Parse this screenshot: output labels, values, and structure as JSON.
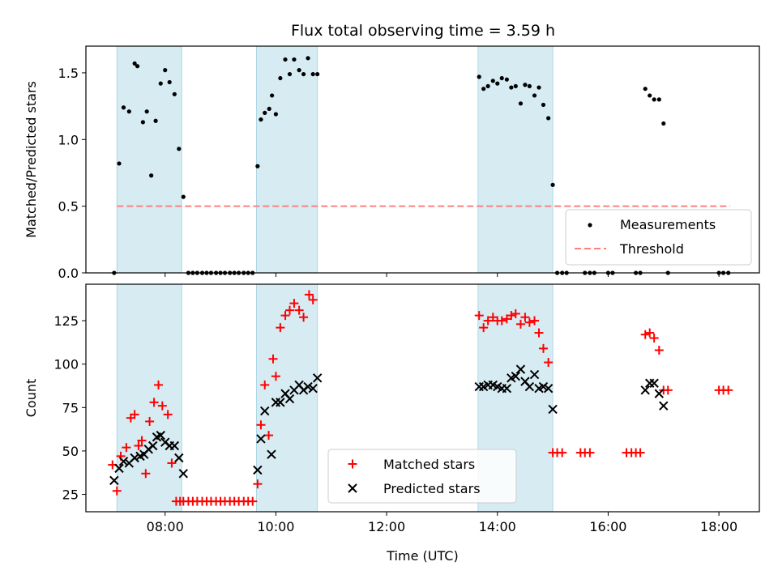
{
  "title": "Flux total observing time = 3.59 h",
  "colors": {
    "shade": "#add8e6",
    "measurement": "#000000",
    "threshold": "#ff7f7f",
    "matched": "#ff0000",
    "predicted": "#000000"
  },
  "chart_data": [
    {
      "type": "scatter",
      "panel": "top",
      "ylabel": "Matched/Predicted stars",
      "xlim": [
        6.57,
        18.73
      ],
      "ylim": [
        0,
        1.7
      ],
      "yticks": [
        0.0,
        0.5,
        1.0,
        1.5
      ],
      "ytick_labels": [
        "0.0",
        "0.5",
        "1.0",
        "1.5"
      ],
      "shaded_intervals": [
        [
          7.13,
          8.3
        ],
        [
          9.65,
          10.75
        ],
        [
          13.65,
          15.0
        ]
      ],
      "threshold": {
        "label": "Threshold",
        "value": 0.5,
        "x_range": [
          7.13,
          18.2
        ]
      },
      "legend": {
        "position": "lower right",
        "entries": [
          "Measurements",
          "Threshold"
        ]
      },
      "series": [
        {
          "name": "Measurements",
          "x": [
            7.08,
            7.17,
            7.25,
            7.35,
            7.45,
            7.5,
            7.6,
            7.67,
            7.75,
            7.83,
            7.92,
            8.0,
            8.08,
            8.17,
            8.25,
            8.33,
            8.42,
            8.5,
            8.58,
            8.67,
            8.75,
            8.83,
            8.92,
            9.0,
            9.08,
            9.17,
            9.25,
            9.33,
            9.42,
            9.5,
            9.58,
            9.67,
            9.73,
            9.8,
            9.88,
            9.93,
            10.0,
            10.08,
            10.17,
            10.25,
            10.33,
            10.42,
            10.5,
            10.58,
            10.67,
            10.75,
            13.67,
            13.75,
            13.83,
            13.92,
            14.0,
            14.08,
            14.17,
            14.25,
            14.33,
            14.42,
            14.5,
            14.58,
            14.67,
            14.75,
            14.83,
            14.92,
            15.0,
            15.08,
            15.17,
            15.25,
            15.58,
            15.67,
            15.75,
            16.0,
            16.08,
            16.5,
            16.58,
            16.67,
            16.75,
            16.83,
            16.92,
            17.0,
            17.08,
            18.0,
            18.08,
            18.17
          ],
          "y": [
            0.0,
            0.82,
            1.24,
            1.21,
            1.57,
            1.55,
            1.13,
            1.21,
            0.73,
            1.14,
            1.42,
            1.52,
            1.43,
            1.34,
            0.93,
            0.57,
            0.0,
            0.0,
            0.0,
            0.0,
            0.0,
            0.0,
            0.0,
            0.0,
            0.0,
            0.0,
            0.0,
            0.0,
            0.0,
            0.0,
            0.0,
            0.8,
            1.15,
            1.2,
            1.23,
            1.33,
            1.19,
            1.46,
            1.6,
            1.49,
            1.6,
            1.52,
            1.49,
            1.61,
            1.49,
            1.49,
            1.47,
            1.38,
            1.4,
            1.44,
            1.42,
            1.46,
            1.45,
            1.39,
            1.4,
            1.27,
            1.41,
            1.4,
            1.33,
            1.39,
            1.26,
            1.16,
            0.66,
            0.0,
            0.0,
            0.0,
            0.0,
            0.0,
            0.0,
            0.0,
            0.0,
            0.0,
            0.0,
            1.38,
            1.33,
            1.3,
            1.3,
            1.12,
            0.0,
            0.0,
            0.0,
            0.0
          ]
        }
      ]
    },
    {
      "type": "scatter",
      "panel": "bottom",
      "xlabel": "Time (UTC)",
      "ylabel": "Count",
      "xlim": [
        6.57,
        18.73
      ],
      "ylim": [
        15,
        146
      ],
      "xticks": [
        8,
        10,
        12,
        14,
        16,
        18
      ],
      "xtick_labels": [
        "08:00",
        "10:00",
        "12:00",
        "14:00",
        "16:00",
        "18:00"
      ],
      "yticks": [
        25,
        50,
        75,
        100,
        125
      ],
      "ytick_labels": [
        "25",
        "50",
        "75",
        "100",
        "125"
      ],
      "shaded_intervals": [
        [
          7.13,
          8.3
        ],
        [
          9.65,
          10.75
        ],
        [
          13.65,
          15.0
        ]
      ],
      "legend": {
        "position": "lower center",
        "entries": [
          "Matched stars",
          "Predicted stars"
        ]
      },
      "series": [
        {
          "name": "Matched stars",
          "marker": "+",
          "x": [
            7.05,
            7.13,
            7.2,
            7.3,
            7.38,
            7.45,
            7.52,
            7.58,
            7.65,
            7.72,
            7.8,
            7.88,
            7.95,
            8.05,
            8.12,
            8.2,
            8.27,
            8.33,
            8.42,
            8.5,
            8.58,
            8.67,
            8.75,
            8.83,
            8.92,
            9.0,
            9.08,
            9.17,
            9.25,
            9.33,
            9.42,
            9.5,
            9.58,
            9.67,
            9.73,
            9.8,
            9.87,
            9.95,
            10.0,
            10.08,
            10.17,
            10.25,
            10.33,
            10.42,
            10.5,
            10.6,
            10.67,
            13.67,
            13.75,
            13.83,
            13.92,
            14.0,
            14.08,
            14.17,
            14.25,
            14.33,
            14.42,
            14.5,
            14.58,
            14.67,
            14.75,
            14.83,
            14.92,
            15.0,
            15.08,
            15.17,
            15.5,
            15.58,
            15.67,
            16.33,
            16.42,
            16.5,
            16.58,
            16.67,
            16.75,
            16.83,
            16.92,
            17.0,
            17.08,
            18.0,
            18.08,
            18.17
          ],
          "y": [
            42,
            27,
            47,
            52,
            69,
            71,
            53,
            56,
            37,
            67,
            78,
            88,
            76,
            71,
            43,
            21,
            21,
            21,
            21,
            21,
            21,
            21,
            21,
            21,
            21,
            21,
            21,
            21,
            21,
            21,
            21,
            21,
            21,
            31,
            65,
            88,
            59,
            103,
            93,
            121,
            128,
            131,
            135,
            131,
            127,
            140,
            137,
            128,
            121,
            125,
            127,
            125,
            125,
            126,
            128,
            129,
            123,
            127,
            124,
            125,
            118,
            109,
            101,
            49,
            49,
            49,
            49,
            49,
            49,
            49,
            49,
            49,
            49,
            117,
            118,
            115,
            108,
            85,
            85,
            85,
            85,
            85
          ]
        },
        {
          "name": "Predicted stars",
          "marker": "x",
          "x": [
            7.08,
            7.17,
            7.25,
            7.35,
            7.45,
            7.55,
            7.62,
            7.7,
            7.78,
            7.85,
            7.92,
            8.0,
            8.08,
            8.17,
            8.25,
            8.33,
            9.67,
            9.73,
            9.8,
            9.92,
            10.0,
            10.08,
            10.17,
            10.25,
            10.33,
            10.42,
            10.5,
            10.58,
            10.67,
            10.75,
            13.67,
            13.75,
            13.83,
            13.92,
            14.0,
            14.08,
            14.17,
            14.25,
            14.33,
            14.42,
            14.5,
            14.58,
            14.67,
            14.75,
            14.83,
            14.92,
            15.0,
            16.67,
            16.75,
            16.83,
            16.92,
            17.0
          ],
          "y": [
            33,
            40,
            44,
            43,
            46,
            47,
            48,
            51,
            53,
            58,
            59,
            55,
            53,
            53,
            46,
            37,
            39,
            57,
            73,
            48,
            78,
            78,
            83,
            80,
            85,
            88,
            85,
            87,
            86,
            92,
            87,
            87,
            88,
            88,
            87,
            86,
            86,
            92,
            93,
            97,
            90,
            87,
            94,
            86,
            87,
            86,
            74,
            85,
            89,
            89,
            83,
            76
          ]
        }
      ]
    }
  ]
}
